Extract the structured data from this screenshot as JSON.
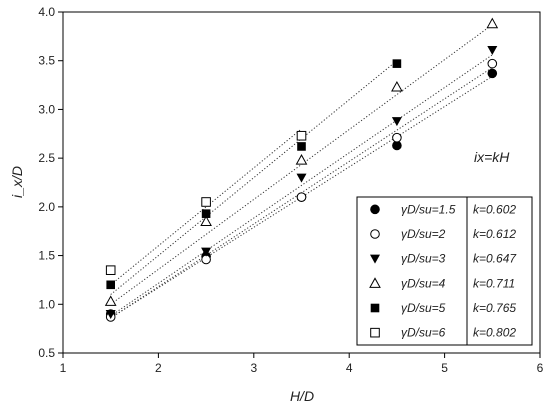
{
  "chart_data": {
    "type": "scatter",
    "title": "",
    "xlabel": "H/D",
    "ylabel": "i_x/D",
    "xlim": [
      1,
      6
    ],
    "ylim": [
      0.5,
      4.0
    ],
    "xticks": [
      "1",
      "2",
      "3",
      "4",
      "5",
      "6"
    ],
    "yticks": [
      "0.5",
      "1.0",
      "1.5",
      "2.0",
      "2.5",
      "3.0",
      "3.5",
      "4.0"
    ],
    "grid": false,
    "annotation": "ix=kH",
    "legend_placement": "lower-right",
    "x": [
      1.5,
      2.5,
      3.5,
      4.5,
      5.5
    ],
    "series": [
      {
        "name": "γD/su=1.5",
        "marker": "filled-circle",
        "k": "k=0.602",
        "values": [
          0.9,
          1.49,
          2.1,
          2.63,
          3.37
        ]
      },
      {
        "name": "γD/su=2",
        "marker": "open-circle",
        "k": "k=0.612",
        "values": [
          0.87,
          1.46,
          2.1,
          2.71,
          3.47
        ]
      },
      {
        "name": "γD/su=3",
        "marker": "filled-triangle-down",
        "k": "k=0.647",
        "values": [
          0.9,
          1.54,
          2.3,
          2.88,
          3.61
        ]
      },
      {
        "name": "γD/su=4",
        "marker": "open-triangle-up",
        "k": "k=0.711",
        "values": [
          1.03,
          1.85,
          2.48,
          3.23,
          3.88
        ]
      },
      {
        "name": "γD/su=5",
        "marker": "filled-square",
        "k": "k=0.765",
        "values": [
          1.2,
          1.93,
          2.62,
          3.47,
          null
        ]
      },
      {
        "name": "γD/su=6",
        "marker": "open-square",
        "k": "k=0.802",
        "values": [
          1.35,
          2.05,
          2.73,
          null,
          null
        ]
      }
    ],
    "trendlines": [
      {
        "series": "γD/su=1.5",
        "x": [
          1.5,
          5.5
        ],
        "y": [
          0.86,
          3.34
        ]
      },
      {
        "series": "γD/su=2",
        "x": [
          1.5,
          5.5
        ],
        "y": [
          0.86,
          3.43
        ]
      },
      {
        "series": "γD/su=3",
        "x": [
          1.5,
          5.5
        ],
        "y": [
          0.88,
          3.56
        ]
      },
      {
        "series": "γD/su=4",
        "x": [
          1.5,
          5.5
        ],
        "y": [
          1.0,
          3.87
        ]
      },
      {
        "series": "γD/su=5",
        "x": [
          1.5,
          4.5
        ],
        "y": [
          1.1,
          3.5
        ]
      },
      {
        "series": "γD/su=6",
        "x": [
          1.5,
          3.5
        ],
        "y": [
          1.2,
          2.8
        ]
      }
    ]
  }
}
